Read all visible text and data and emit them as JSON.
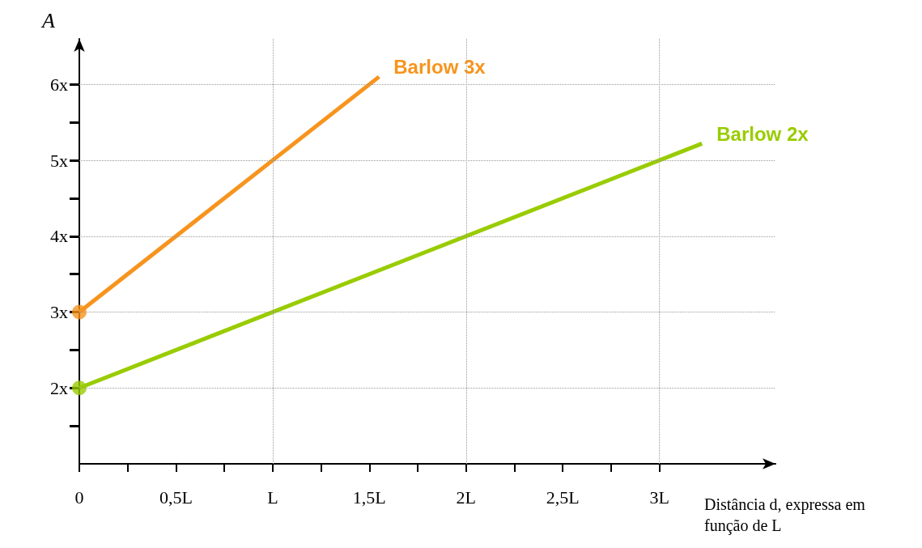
{
  "chart_data": {
    "type": "line",
    "xlabel": "Distância d, expressa em função de L",
    "ylabel": "A",
    "xlim": [
      0,
      3.6
    ],
    "ylim": [
      1,
      6.6
    ],
    "xticks": [
      0,
      {
        "value": 0.25,
        "label": null
      },
      {
        "value": 0.5,
        "label": "0,5L"
      },
      {
        "value": 0.75,
        "label": null
      },
      {
        "value": 1,
        "label": "L"
      },
      {
        "value": 1.25,
        "label": null
      },
      {
        "value": 1.5,
        "label": "1,5L"
      },
      {
        "value": 1.75,
        "label": null
      },
      {
        "value": 2,
        "label": "2L"
      },
      {
        "value": 2.25,
        "label": null
      },
      {
        "value": 2.5,
        "label": "2,5L"
      },
      {
        "value": 2.75,
        "label": null
      },
      {
        "value": 3,
        "label": "3L"
      }
    ],
    "yticks": [
      {
        "value": 1.5,
        "label": null
      },
      {
        "value": 2,
        "label": "2x"
      },
      {
        "value": 2.5,
        "label": null
      },
      {
        "value": 3,
        "label": "3x"
      },
      {
        "value": 3.5,
        "label": null
      },
      {
        "value": 4,
        "label": "4x"
      },
      {
        "value": 4.5,
        "label": null
      },
      {
        "value": 5,
        "label": "5x"
      },
      {
        "value": 5.5,
        "label": null
      },
      {
        "value": 6,
        "label": "6x"
      }
    ],
    "grid": true,
    "legend": false,
    "series": [
      {
        "name": "Barlow 3x",
        "color": "#f7941d",
        "x": [
          0,
          1.55
        ],
        "values": [
          3,
          6.1
        ]
      },
      {
        "name": "Barlow 2x",
        "color": "#99cc00",
        "x": [
          0,
          3.22
        ],
        "values": [
          2,
          5.22
        ]
      },
      {
        "type": "scatter",
        "marker": "circle",
        "color": "#f7941d",
        "x": [
          0
        ],
        "values": [
          3
        ]
      },
      {
        "type": "scatter",
        "marker": "circle",
        "color": "#99cc00",
        "x": [
          0
        ],
        "values": [
          2
        ]
      }
    ]
  }
}
